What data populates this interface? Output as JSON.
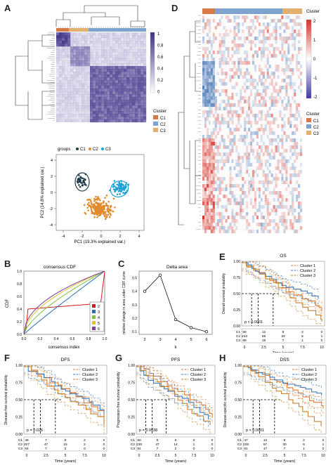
{
  "panels": {
    "A": "A",
    "B": "B",
    "C": "C",
    "D": "D",
    "E": "E",
    "F": "F",
    "G": "G",
    "H": "H"
  },
  "panelA": {
    "scale_ticks": [
      "1",
      "0.8",
      "0.6",
      "0.4",
      "0.2",
      "0"
    ],
    "legend_title": "Cluster",
    "legend_items": [
      "C1",
      "C2",
      "C3"
    ],
    "colors": {
      "C1": "#d8794a",
      "C2": "#7ea3cf",
      "C3": "#e3b070",
      "heat": "#3d2f86"
    }
  },
  "pca": {
    "groups_label": "groups",
    "legend_items": [
      "C1",
      "C2",
      "C3"
    ],
    "colors": {
      "C1": "#1c3b46",
      "C2": "#e08a2c",
      "C3": "#1aa0d6"
    },
    "xlabel": "PC1 (19.3% explained var.)",
    "ylabel": "PC2 (14.8% explained var.)",
    "xticks": [
      "-4",
      "-2",
      "0",
      "2",
      "4"
    ],
    "yticks": [
      "4",
      "2",
      "0",
      "-2",
      "-4"
    ]
  },
  "panelD": {
    "cluster_label": "Cluster",
    "scale_ticks": [
      "2",
      "1",
      "0",
      "-1",
      "-2"
    ],
    "legend_title": "Cluster",
    "legend_items": [
      "C1",
      "C2",
      "C3"
    ]
  },
  "chart_data": [
    {
      "type": "line",
      "title": "consensus CDF",
      "xlabel": "consensus index",
      "ylabel": "CDF",
      "xticks": [
        "0.0",
        "0.2",
        "0.4",
        "0.6",
        "0.8",
        "1.0"
      ],
      "yticks": [
        "0.0",
        "0.2",
        "0.4",
        "0.6",
        "0.8",
        "1.0"
      ],
      "legend_items": [
        "2",
        "3",
        "4",
        "5",
        "6"
      ],
      "colors": [
        "#d7191c",
        "#2b6cb0",
        "#7cc242",
        "#e7c12b",
        "#7b3f9e"
      ]
    },
    {
      "type": "line",
      "title": "Delta area",
      "xlabel": "k",
      "ylabel": "relative change in area under CDF curve",
      "xticks": [
        "2",
        "3",
        "4",
        "5",
        "6"
      ],
      "yticks": [
        "0.1",
        "0.2",
        "0.3",
        "0.4",
        "0.5"
      ],
      "x": [
        2,
        3,
        4,
        5,
        6
      ],
      "y": [
        0.4,
        0.52,
        0.19,
        0.13,
        0.1
      ]
    }
  ],
  "survival": {
    "E": {
      "title": "OS",
      "pval": "p < 0.0001",
      "rows": [
        [
          "C1",
          "56",
          "12",
          "8",
          "2",
          "0"
        ],
        [
          "C2",
          "243",
          "69",
          "33",
          "6",
          "1"
        ],
        [
          "C3",
          "89",
          "18",
          "7",
          "1",
          "0"
        ]
      ]
    },
    "F": {
      "title": "DFS",
      "pval": "p = 0.026",
      "rows": [
        [
          "C1",
          "45",
          "7",
          "6",
          "2",
          "0"
        ],
        [
          "C2",
          "207",
          "47",
          "15",
          "2",
          "0"
        ],
        [
          "C3",
          "64",
          "7",
          "2",
          "0",
          "0"
        ]
      ]
    },
    "G": {
      "title": "PFS",
      "pval": "p = 0.0038",
      "rows": [
        [
          "C1",
          "50",
          "9",
          "5",
          "2",
          "0"
        ],
        [
          "C2",
          "239",
          "47",
          "14",
          "1",
          "0"
        ],
        [
          "C3",
          "81",
          "7",
          "2",
          "0",
          "0"
        ]
      ]
    },
    "H": {
      "title": "DSS",
      "pval": "p < 0.0001",
      "rows": [
        [
          "C1",
          "47",
          "12",
          "8",
          "2",
          "0"
        ],
        [
          "C2",
          "228",
          "67",
          "30",
          "6",
          "1"
        ],
        [
          "C3",
          "81",
          "17",
          "7",
          "1",
          "0"
        ]
      ]
    },
    "legend_items": [
      "Cluster 1",
      "Cluster 2",
      "Cluster 3"
    ],
    "colors": [
      "#e07b39",
      "#3a7ec4",
      "#c9832b"
    ],
    "xlabel": "Time (years)",
    "ylabel_OS": "Overall survival probability",
    "ylabel_DFS": "Disease-free survival probability",
    "ylabel_PFS": "Progression-free survival probability",
    "ylabel_DSS": "Disease-specific survival probability",
    "xticks": [
      "0",
      "2.5",
      "5",
      "7.5",
      "10"
    ],
    "yticks": [
      "1.00",
      "0.75",
      "0.50",
      "0.25",
      "0.00"
    ]
  }
}
